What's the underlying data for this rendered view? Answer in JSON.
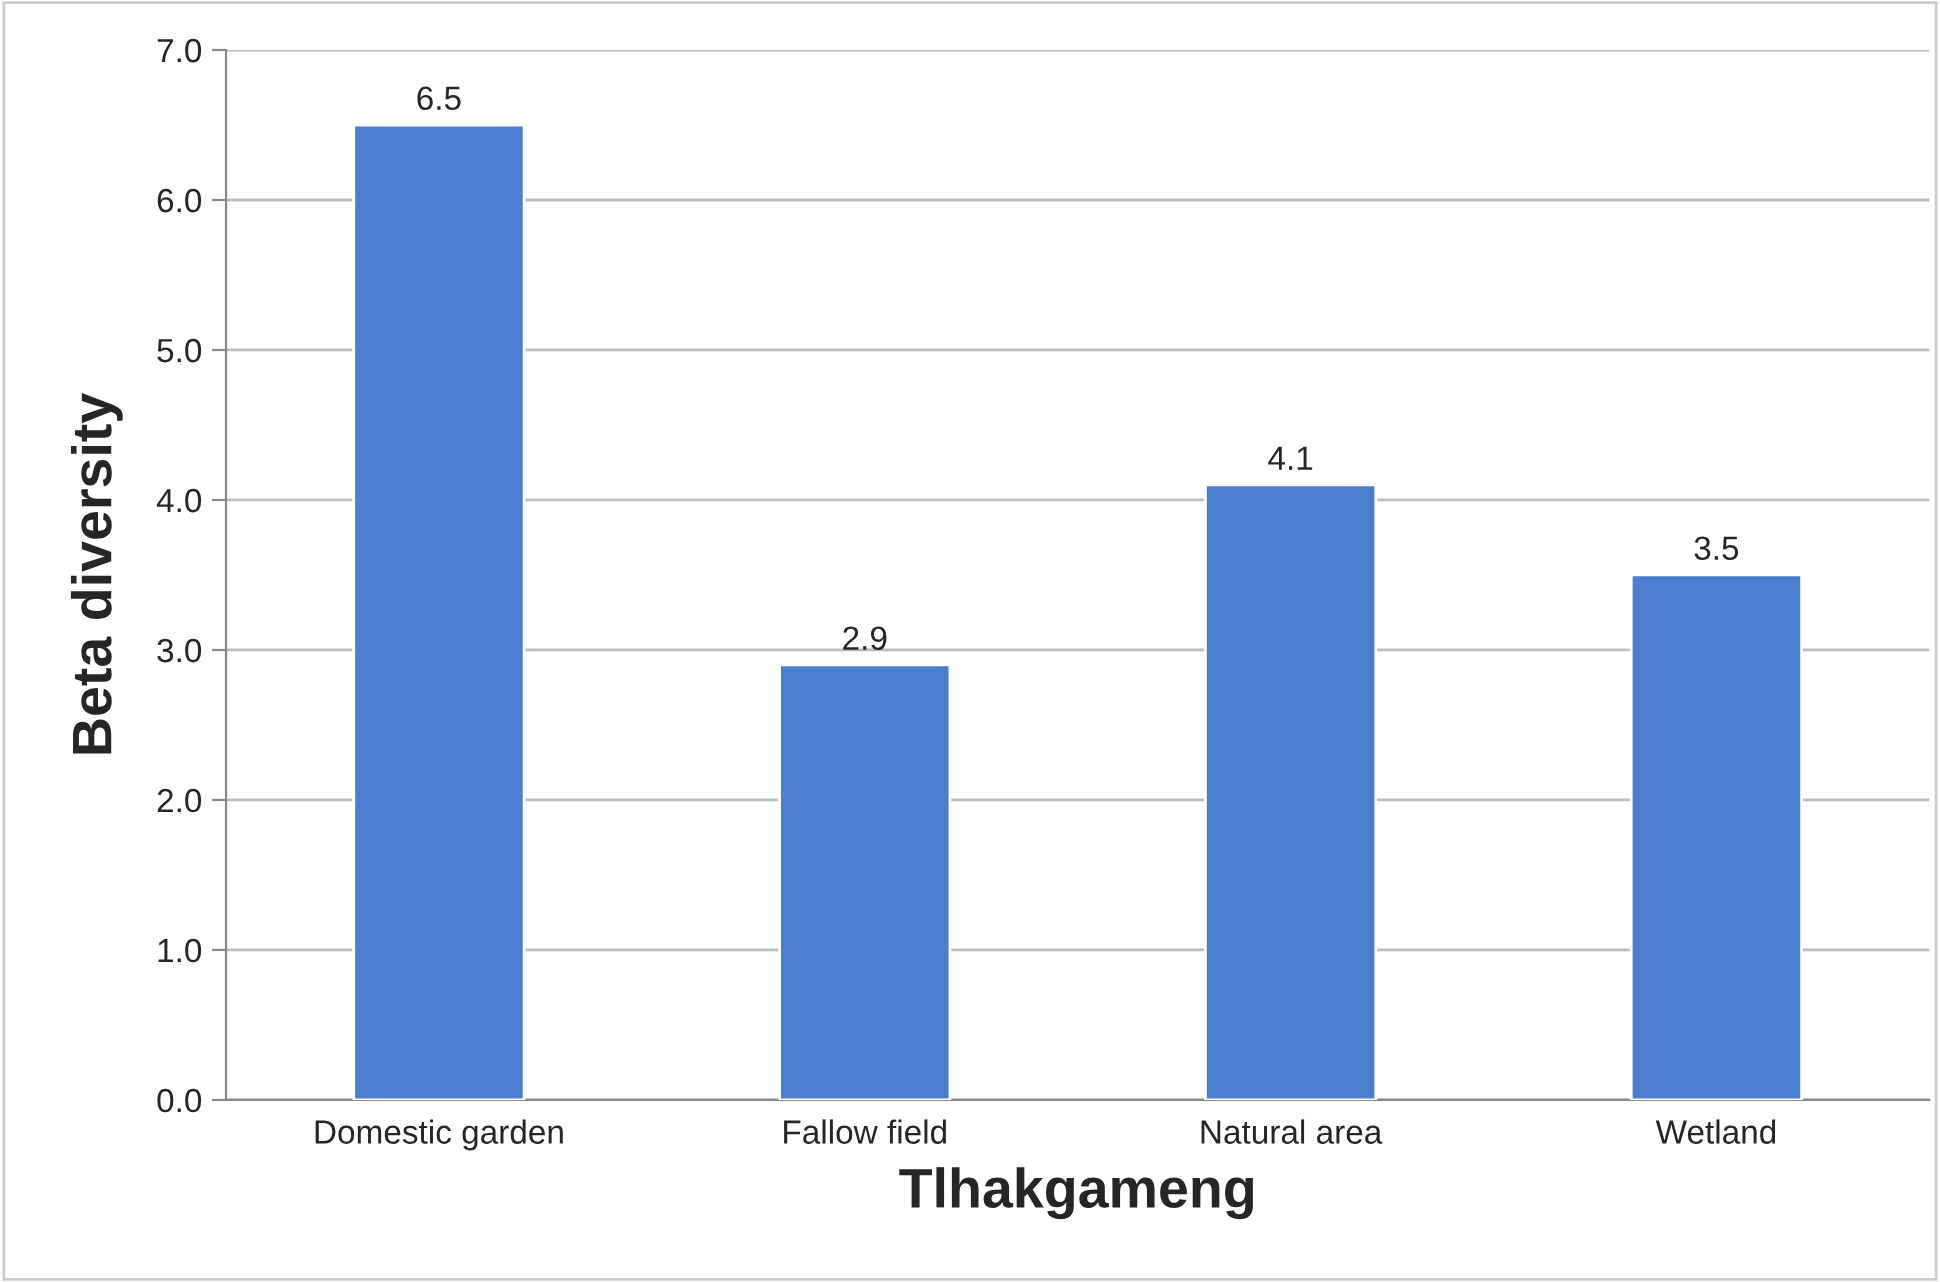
{
  "chart_data": {
    "type": "bar",
    "xlabel": "Tlhakgameng",
    "ylabel": "Beta diversity",
    "categories": [
      "Domestic garden",
      "Fallow field",
      "Natural area",
      "Wetland"
    ],
    "values": [
      6.5,
      2.9,
      4.1,
      3.5
    ],
    "color": "#4a7fd0",
    "ylim": [
      0,
      7
    ],
    "yticks": [
      {
        "value": 0,
        "label": "0.0"
      },
      {
        "value": 1,
        "label": "1.0"
      },
      {
        "value": 2,
        "label": "2.0"
      },
      {
        "value": 3,
        "label": "3.0"
      },
      {
        "value": 4,
        "label": "4.0"
      },
      {
        "value": 5,
        "label": "5.0"
      },
      {
        "value": 6,
        "label": "6.0"
      },
      {
        "value": 7,
        "label": "7.0"
      }
    ],
    "grid": "y",
    "data_labels": true
  }
}
